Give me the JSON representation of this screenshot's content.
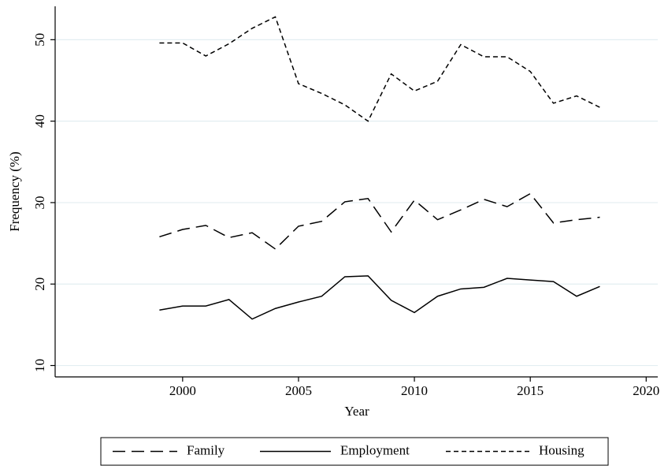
{
  "chart_data": {
    "type": "line",
    "x_label": "Year",
    "y_label": "Frequency (%)",
    "x": [
      1999,
      2000,
      2001,
      2002,
      2003,
      2004,
      2005,
      2006,
      2007,
      2008,
      2009,
      2010,
      2011,
      2012,
      2013,
      2014,
      2015,
      2016,
      2017,
      2018
    ],
    "series": [
      {
        "name": "Family",
        "color": "#000000",
        "dash": "longdash",
        "values": [
          25.8,
          26.7,
          27.2,
          25.7,
          26.3,
          24.3,
          27.1,
          27.7,
          30.1,
          30.5,
          26.4,
          30.3,
          27.9,
          29.1,
          30.4,
          29.5,
          31.1,
          27.5,
          27.9,
          28.2
        ]
      },
      {
        "name": "Employment",
        "color": "#000000",
        "dash": "solid",
        "values": [
          16.8,
          17.3,
          17.3,
          18.1,
          15.7,
          17.0,
          17.8,
          18.5,
          20.9,
          21.0,
          18.0,
          16.5,
          18.5,
          19.4,
          19.6,
          20.7,
          20.5,
          20.3,
          18.5,
          19.7
        ]
      },
      {
        "name": "Housing",
        "color": "#000000",
        "dash": "shortdash",
        "values": [
          49.6,
          49.6,
          48.0,
          49.5,
          51.4,
          52.8,
          44.6,
          43.4,
          42.0,
          40.0,
          45.8,
          43.7,
          44.9,
          49.4,
          47.9,
          47.9,
          46.1,
          42.2,
          43.1,
          41.7
        ]
      }
    ],
    "xlim": [
      1994.5,
      2020.5
    ],
    "xticks": [
      2000,
      2005,
      2010,
      2015,
      2020
    ],
    "ylim": [
      8.6,
      54.1
    ],
    "yticks": [
      10,
      20,
      30,
      40,
      50
    ],
    "grid": true,
    "legend": "bottom"
  }
}
